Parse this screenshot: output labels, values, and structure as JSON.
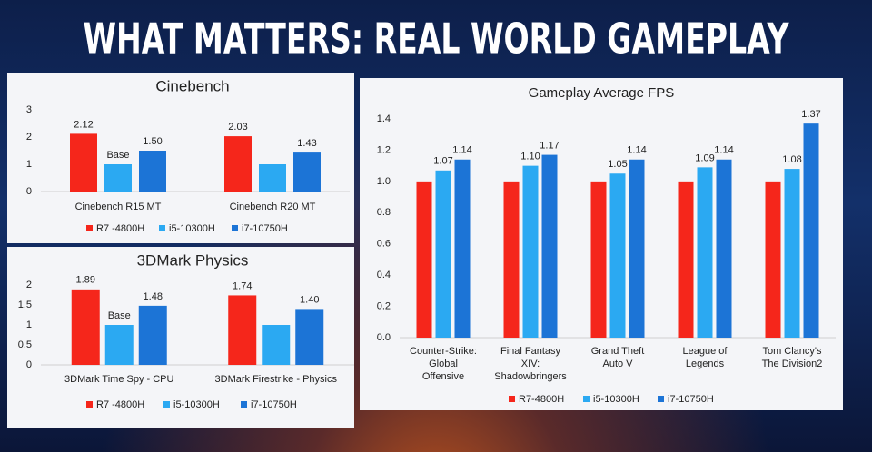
{
  "title": "WHAT MATTERS: REAL WORLD GAMEPLAY",
  "chart_data": [
    {
      "type": "bar",
      "title": "Cinebench",
      "categories": [
        "Cinebench R15 MT",
        "Cinebench R20 MT"
      ],
      "series": [
        {
          "name": "R7 -4800H",
          "color": "#f5261b",
          "values": [
            2.12,
            2.03
          ]
        },
        {
          "name": "i5-10300H",
          "color": "#2ba9f2",
          "values": [
            1,
            1
          ],
          "value_labels": [
            "Base",
            null
          ]
        },
        {
          "name": "i7-10750H",
          "color": "#1c74d6",
          "values": [
            1.5,
            1.43
          ],
          "value_labels": [
            "1.50",
            "1.43"
          ]
        }
      ],
      "ylim": [
        0,
        3
      ],
      "yticks": [
        0,
        1,
        2,
        3
      ],
      "grid": false,
      "legend": "bottom"
    },
    {
      "type": "bar",
      "title": "3DMark Physics",
      "categories": [
        "3DMark Time Spy - CPU",
        "3DMark Firestrike - Physics"
      ],
      "series": [
        {
          "name": "R7 -4800H",
          "color": "#f5261b",
          "values": [
            1.89,
            1.74
          ]
        },
        {
          "name": "i5-10300H",
          "color": "#2ba9f2",
          "values": [
            1,
            1
          ],
          "value_labels": [
            "Base",
            null
          ]
        },
        {
          "name": "i7-10750H",
          "color": "#1c74d6",
          "values": [
            1.48,
            1.4
          ],
          "value_labels": [
            "1.48",
            "1.40"
          ]
        }
      ],
      "ylim": [
        0,
        2
      ],
      "yticks": [
        0,
        0.5,
        1,
        1.5,
        2
      ],
      "grid": false,
      "legend": "bottom"
    },
    {
      "type": "bar",
      "title": "Gameplay Average FPS",
      "categories": [
        "Counter-Strike:\nGlobal\nOffensive",
        "Final Fantasy\nXIV:\nShadowbringers",
        "Grand Theft\nAuto V",
        "League of\nLegends",
        "Tom Clancy's\nThe Division2"
      ],
      "series": [
        {
          "name": "R7-4800H",
          "color": "#f5261b",
          "values": [
            1.0,
            1.0,
            1.0,
            1.0,
            1.0
          ],
          "value_labels": [
            null,
            null,
            null,
            null,
            null
          ]
        },
        {
          "name": "i5-10300H",
          "color": "#2ba9f2",
          "values": [
            1.07,
            1.1,
            1.05,
            1.09,
            1.08
          ],
          "value_labels": [
            "1.07",
            "1.10",
            "1.05",
            "1.09",
            "1.08"
          ]
        },
        {
          "name": "i7-10750H",
          "color": "#1c74d6",
          "values": [
            1.14,
            1.17,
            1.14,
            1.14,
            1.37
          ]
        }
      ],
      "ylim": [
        0,
        1.4
      ],
      "yticks": [
        {
          "value": 0,
          "label": "0.0"
        },
        {
          "value": 0.2,
          "label": "0.2"
        },
        {
          "value": 0.4,
          "label": "0.4"
        },
        {
          "value": 0.6,
          "label": "0.6"
        },
        {
          "value": 0.8,
          "label": "0.8"
        },
        {
          "value": 1,
          "label": "1.0"
        },
        {
          "value": 1.2,
          "label": "1.2"
        },
        {
          "value": 1.4,
          "label": "1.4"
        }
      ],
      "grid": false,
      "legend": "bottom"
    }
  ]
}
